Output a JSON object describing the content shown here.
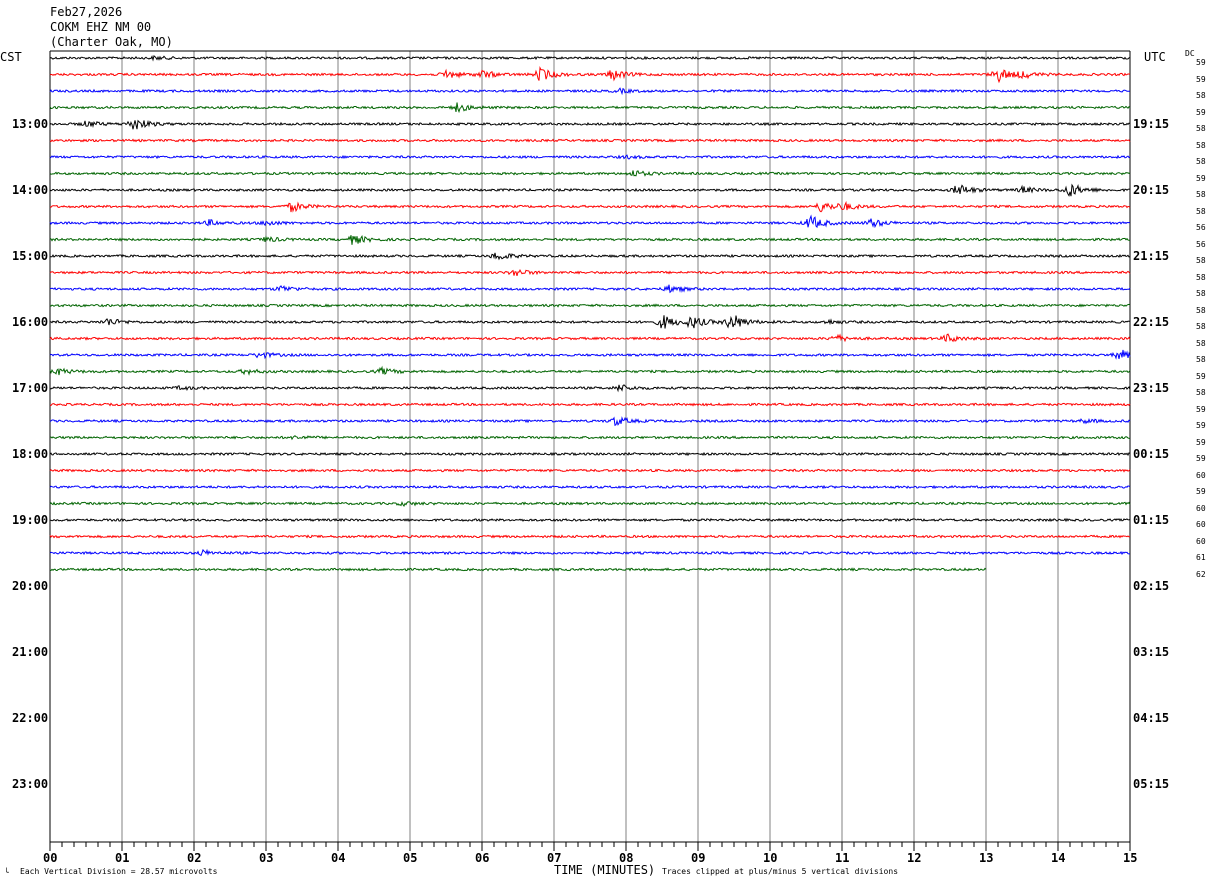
{
  "header": {
    "date": "Feb27,2026",
    "station": "COKM EHZ NM 00",
    "location": "(Charter Oak, MO)"
  },
  "axes": {
    "left_label": "CST",
    "right_label": "UTC",
    "dc_label": "DC",
    "xlabel": "TIME (MINUTES)",
    "footer_scale": "Each Vertical Division =   28.57 microvolts",
    "footer_clip": "Traces clipped at plus/minus 5 vertical divisions",
    "footer_mark": "╰"
  },
  "chart_data": {
    "type": "line",
    "x_range": [
      0,
      15
    ],
    "x_ticks": [
      "00",
      "01",
      "02",
      "03",
      "04",
      "05",
      "06",
      "07",
      "08",
      "09",
      "10",
      "11",
      "12",
      "13",
      "14",
      "15"
    ],
    "rows_per_hour": 4,
    "row_minutes": 15,
    "cst_hour_labels": [
      "13:00",
      "14:00",
      "15:00",
      "16:00",
      "17:00",
      "18:00",
      "19:00",
      "20:00",
      "21:00",
      "22:00",
      "23:00"
    ],
    "utc_hour_labels": [
      "19:15",
      "20:15",
      "21:15",
      "22:15",
      "23:15",
      "00:15",
      "01:15",
      "02:15",
      "03:15",
      "04:15",
      "05:15"
    ],
    "trace_colors": [
      "#000000",
      "#ff0000",
      "#0000ff",
      "#006400"
    ],
    "dc_values": [
      "59",
      "59",
      "58",
      "59",
      "58",
      "58",
      "58",
      "59",
      "58",
      "58",
      "56",
      "56",
      "58",
      "58",
      "58",
      "58",
      "58",
      "58",
      "58",
      "59",
      "58",
      "59",
      "59",
      "59",
      "59",
      "60",
      "59",
      "60",
      "60",
      "60",
      "61",
      "62"
    ],
    "trace_count": 32,
    "last_trace_end_minute": 13,
    "events": [
      {
        "row": 0,
        "minute": 1.45,
        "amp": 0.5
      },
      {
        "row": 1,
        "minute": 5.5,
        "amp": 1.4
      },
      {
        "row": 1,
        "minute": 6.0,
        "amp": 1.2
      },
      {
        "row": 1,
        "minute": 6.8,
        "amp": 2.2
      },
      {
        "row": 1,
        "minute": 7.8,
        "amp": 1.8
      },
      {
        "row": 1,
        "minute": 13.15,
        "amp": 2.5
      },
      {
        "row": 1,
        "minute": 13.5,
        "amp": 1.0
      },
      {
        "row": 2,
        "minute": 7.9,
        "amp": 0.6
      },
      {
        "row": 3,
        "minute": 5.65,
        "amp": 1.4
      },
      {
        "row": 4,
        "minute": 0.5,
        "amp": 1.0
      },
      {
        "row": 4,
        "minute": 1.15,
        "amp": 2.3
      },
      {
        "row": 6,
        "minute": 8.0,
        "amp": 0.4
      },
      {
        "row": 7,
        "minute": 8.1,
        "amp": 1.0
      },
      {
        "row": 8,
        "minute": 12.6,
        "amp": 2.0
      },
      {
        "row": 8,
        "minute": 13.5,
        "amp": 1.0
      },
      {
        "row": 8,
        "minute": 14.15,
        "amp": 2.3
      },
      {
        "row": 9,
        "minute": 3.35,
        "amp": 1.6
      },
      {
        "row": 9,
        "minute": 10.7,
        "amp": 1.7
      },
      {
        "row": 9,
        "minute": 11.0,
        "amp": 1.2
      },
      {
        "row": 10,
        "minute": 2.2,
        "amp": 0.9
      },
      {
        "row": 10,
        "minute": 3.0,
        "amp": 0.8
      },
      {
        "row": 10,
        "minute": 10.55,
        "amp": 2.5
      },
      {
        "row": 10,
        "minute": 11.4,
        "amp": 1.4
      },
      {
        "row": 11,
        "minute": 3.0,
        "amp": 0.8
      },
      {
        "row": 11,
        "minute": 4.2,
        "amp": 1.6
      },
      {
        "row": 12,
        "minute": 6.2,
        "amp": 1.5
      },
      {
        "row": 13,
        "minute": 6.45,
        "amp": 1.2
      },
      {
        "row": 14,
        "minute": 3.2,
        "amp": 1.0
      },
      {
        "row": 14,
        "minute": 8.6,
        "amp": 1.2
      },
      {
        "row": 16,
        "minute": 0.8,
        "amp": 1.2
      },
      {
        "row": 16,
        "minute": 8.5,
        "amp": 2.4
      },
      {
        "row": 16,
        "minute": 8.9,
        "amp": 2.0
      },
      {
        "row": 16,
        "minute": 9.45,
        "amp": 3.0
      },
      {
        "row": 16,
        "minute": 10.8,
        "amp": 0.6
      },
      {
        "row": 17,
        "minute": 10.9,
        "amp": 1.2
      },
      {
        "row": 17,
        "minute": 12.45,
        "amp": 1.3
      },
      {
        "row": 18,
        "minute": 2.9,
        "amp": 1.0
      },
      {
        "row": 18,
        "minute": 14.85,
        "amp": 1.8
      },
      {
        "row": 19,
        "minute": 0.1,
        "amp": 1.0
      },
      {
        "row": 19,
        "minute": 2.7,
        "amp": 0.8
      },
      {
        "row": 19,
        "minute": 4.6,
        "amp": 1.0
      },
      {
        "row": 20,
        "minute": 1.8,
        "amp": 0.5
      },
      {
        "row": 20,
        "minute": 7.9,
        "amp": 1.1
      },
      {
        "row": 22,
        "minute": 7.85,
        "amp": 1.4
      },
      {
        "row": 22,
        "minute": 14.35,
        "amp": 0.6
      },
      {
        "row": 23,
        "minute": 3.4,
        "amp": 0.5
      },
      {
        "row": 27,
        "minute": 4.9,
        "amp": 0.6
      },
      {
        "row": 30,
        "minute": 2.1,
        "amp": 0.9
      }
    ]
  }
}
